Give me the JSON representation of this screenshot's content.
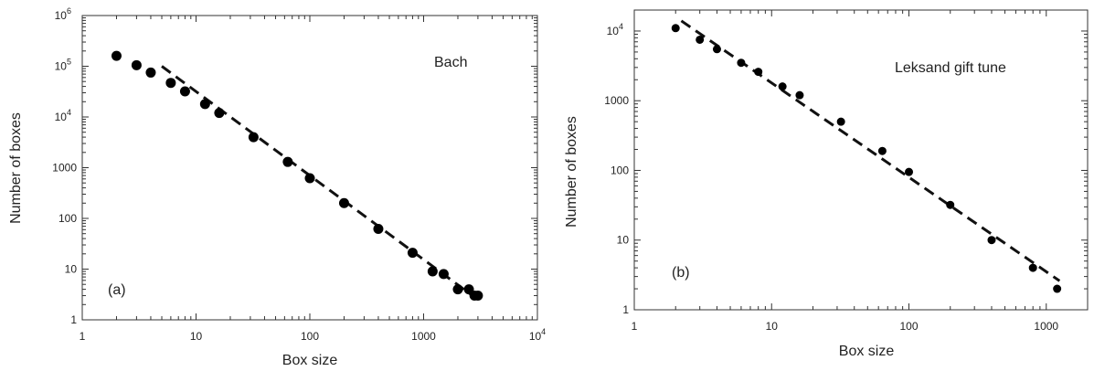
{
  "chart_data": [
    {
      "type": "scatter",
      "panel_label": "(a)",
      "annotation": "Bach",
      "xlabel": "Box size",
      "ylabel": "Number of boxes",
      "x_scale": "log",
      "y_scale": "log",
      "xlim": [
        1,
        10000
      ],
      "ylim": [
        1,
        1000000
      ],
      "x_ticks": [
        {
          "value": 1,
          "label": "1"
        },
        {
          "value": 10,
          "label": "10"
        },
        {
          "value": 100,
          "label": "100"
        },
        {
          "value": 1000,
          "label": "1000"
        },
        {
          "value": 10000,
          "label": "10",
          "exp": "4"
        }
      ],
      "y_ticks": [
        {
          "value": 1,
          "label": "1"
        },
        {
          "value": 10,
          "label": "10"
        },
        {
          "value": 100,
          "label": "100"
        },
        {
          "value": 1000,
          "label": "1000"
        },
        {
          "value": 10000,
          "label": "10",
          "exp": "4"
        },
        {
          "value": 100000,
          "label": "10",
          "exp": "5"
        },
        {
          "value": 1000000,
          "label": "10",
          "exp": "6"
        }
      ],
      "points": [
        {
          "x": 2,
          "y": 160000
        },
        {
          "x": 3,
          "y": 105000
        },
        {
          "x": 4,
          "y": 75000
        },
        {
          "x": 6,
          "y": 47000
        },
        {
          "x": 8,
          "y": 32000
        },
        {
          "x": 12,
          "y": 18000
        },
        {
          "x": 16,
          "y": 12000
        },
        {
          "x": 32,
          "y": 4000
        },
        {
          "x": 64,
          "y": 1300
        },
        {
          "x": 100,
          "y": 620
        },
        {
          "x": 200,
          "y": 200
        },
        {
          "x": 400,
          "y": 62
        },
        {
          "x": 800,
          "y": 21
        },
        {
          "x": 1200,
          "y": 9
        },
        {
          "x": 1500,
          "y": 8
        },
        {
          "x": 2000,
          "y": 4
        },
        {
          "x": 2500,
          "y": 4
        },
        {
          "x": 2800,
          "y": 3
        },
        {
          "x": 3000,
          "y": 3
        }
      ],
      "fit_line": [
        {
          "x": 5,
          "y": 100000
        },
        {
          "x": 2800,
          "y": 2.8
        }
      ],
      "grid": false
    },
    {
      "type": "scatter",
      "panel_label": "(b)",
      "annotation": "Leksand gift tune",
      "xlabel": "Box size",
      "ylabel": "Number of boxes",
      "x_scale": "log",
      "y_scale": "log",
      "xlim": [
        1,
        2000
      ],
      "ylim": [
        1,
        20000
      ],
      "x_ticks": [
        {
          "value": 1,
          "label": "1"
        },
        {
          "value": 10,
          "label": "10"
        },
        {
          "value": 100,
          "label": "100"
        },
        {
          "value": 1000,
          "label": "1000"
        }
      ],
      "y_ticks": [
        {
          "value": 1,
          "label": "1"
        },
        {
          "value": 10,
          "label": "10"
        },
        {
          "value": 100,
          "label": "100"
        },
        {
          "value": 1000,
          "label": "1000"
        },
        {
          "value": 10000,
          "label": "10",
          "exp": "4"
        }
      ],
      "points": [
        {
          "x": 2,
          "y": 11000
        },
        {
          "x": 3,
          "y": 7500
        },
        {
          "x": 4,
          "y": 5500
        },
        {
          "x": 6,
          "y": 3500
        },
        {
          "x": 8,
          "y": 2600
        },
        {
          "x": 12,
          "y": 1600
        },
        {
          "x": 16,
          "y": 1200
        },
        {
          "x": 32,
          "y": 500
        },
        {
          "x": 64,
          "y": 190
        },
        {
          "x": 100,
          "y": 95
        },
        {
          "x": 200,
          "y": 32
        },
        {
          "x": 400,
          "y": 10
        },
        {
          "x": 800,
          "y": 4
        },
        {
          "x": 1200,
          "y": 2
        }
      ],
      "fit_line": [
        {
          "x": 2.2,
          "y": 14000
        },
        {
          "x": 1250,
          "y": 2.6
        }
      ],
      "grid": false
    }
  ]
}
